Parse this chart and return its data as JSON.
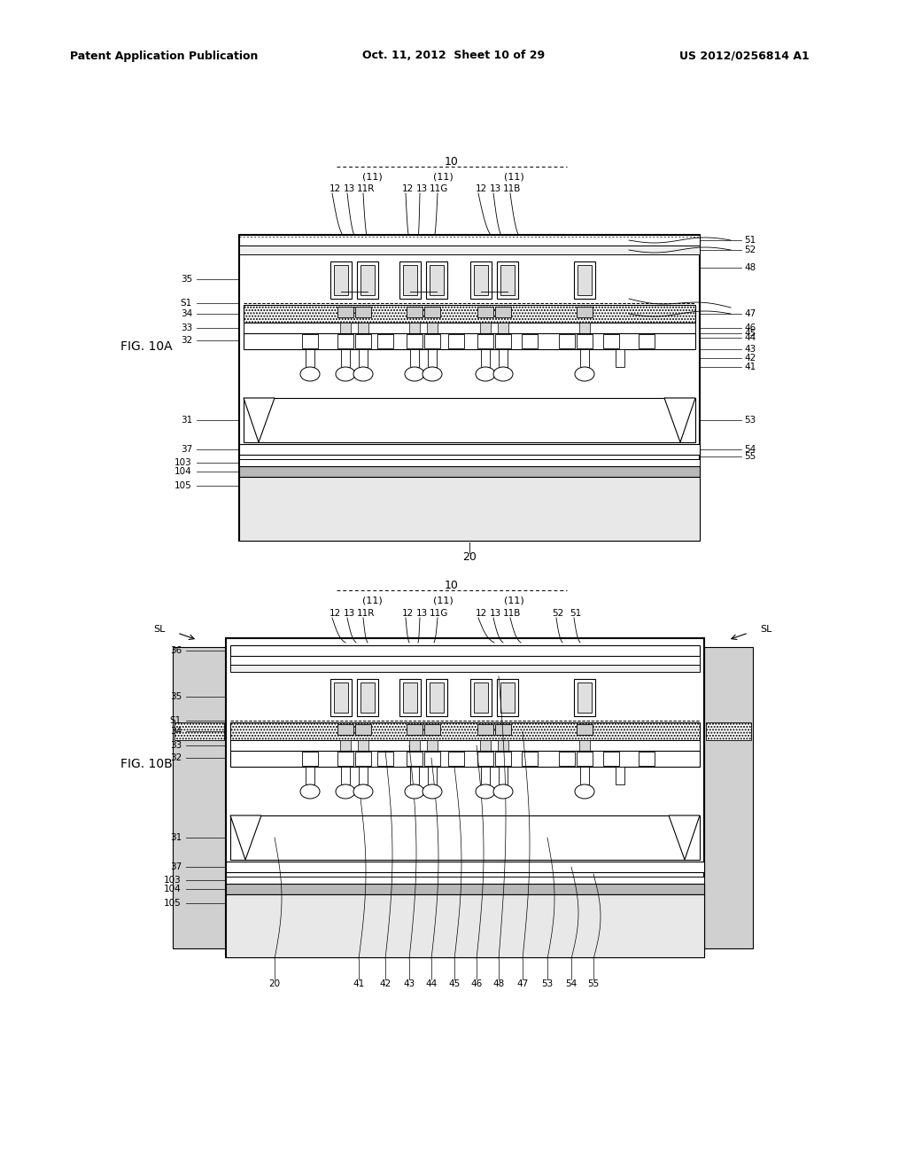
{
  "bg_color": "#ffffff",
  "header_left": "Patent Application Publication",
  "header_center": "Oct. 11, 2012  Sheet 10 of 29",
  "header_right": "US 2012/0256814 A1"
}
